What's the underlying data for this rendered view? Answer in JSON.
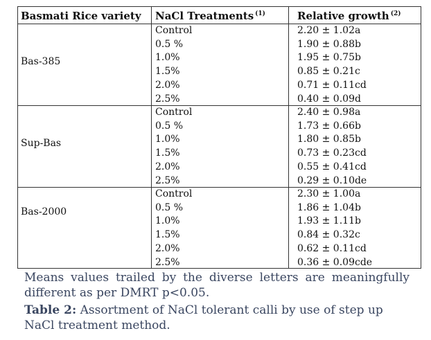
{
  "table": {
    "headers": {
      "variety": "Basmati Rice variety",
      "treatment": "NaCl Treatments",
      "treatment_sup": "(1)",
      "growth": "Relative growth",
      "growth_sup": "(2)"
    },
    "groups": [
      {
        "variety": "Bas-385",
        "rows": [
          {
            "treatment": "Control",
            "growth": "2.20 ± 1.02a"
          },
          {
            "treatment": "0.5 %",
            "growth": "1.90 ± 0.88b"
          },
          {
            "treatment": "1.0%",
            "growth": "1.95 ± 0.75b"
          },
          {
            "treatment": "1.5%",
            "growth": "0.85 ± 0.21c"
          },
          {
            "treatment": "2.0%",
            "growth": "0.71 ± 0.11cd"
          },
          {
            "treatment": "2.5%",
            "growth": "0.40 ± 0.09d"
          }
        ]
      },
      {
        "variety": "Sup-Bas",
        "rows": [
          {
            "treatment": "Control",
            "growth": "2.40 ± 0.98a"
          },
          {
            "treatment": "0.5 %",
            "growth": "1.73 ± 0.66b"
          },
          {
            "treatment": "1.0%",
            "growth": "1.80 ± 0.85b"
          },
          {
            "treatment": "1.5%",
            "growth": "0.73 ± 0.23cd"
          },
          {
            "treatment": "2.0%",
            "growth": "0.55 ± 0.41cd"
          },
          {
            "treatment": "2.5%",
            "growth": "0.29 ± 0.10de"
          }
        ]
      },
      {
        "variety": "Bas-2000",
        "rows": [
          {
            "treatment": "Control",
            "growth": "2.30 ± 1.00a"
          },
          {
            "treatment": "0.5 %",
            "growth": "1.86 ± 1.04b"
          },
          {
            "treatment": "1.0%",
            "growth": "1.93 ± 1.11b"
          },
          {
            "treatment": "1.5%",
            "growth": "0.84 ± 0.32c"
          },
          {
            "treatment": "2.0%",
            "growth": "0.62 ± 0.11cd"
          },
          {
            "treatment": "2.5%",
            "growth": "0.36 ± 0.09cde"
          }
        ]
      }
    ]
  },
  "note": {
    "line1": "Means values trailed by the diverse letters are meaningfully",
    "line2": "different as per DMRT p<0.05."
  },
  "caption": {
    "label": "Table 2:",
    "text": " Assortment of NaCl tolerant calli by use of step up NaCl treatment method."
  }
}
